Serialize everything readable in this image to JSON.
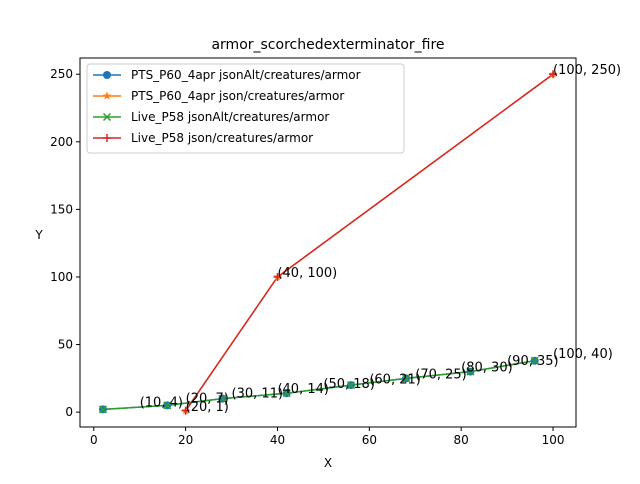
{
  "chart_data": {
    "type": "line",
    "title": "armor_scorchedexterminator_fire",
    "xlabel": "X",
    "ylabel": "Y",
    "xlim": [
      -3,
      105
    ],
    "ylim": [
      -11,
      262
    ],
    "grid": false,
    "legend_placement": "top-left",
    "x_ticks": [
      0,
      20,
      40,
      60,
      80,
      100
    ],
    "y_ticks": [
      0,
      50,
      100,
      150,
      200,
      250
    ],
    "series": [
      {
        "name": "PTS_P60_4apr jsonAlt/creatures/armor",
        "color": "#1f77b4",
        "marker": "circle",
        "x": [
          2,
          16,
          28,
          42,
          56,
          68,
          82,
          96
        ],
        "y": [
          2,
          5,
          10,
          14,
          20,
          25,
          30,
          38
        ]
      },
      {
        "name": "PTS_P60_4apr json/creatures/armor",
        "color": "#ff7f0e",
        "marker": "star",
        "x": [
          20,
          40,
          100
        ],
        "y": [
          1,
          100,
          250
        ]
      },
      {
        "name": "Live_P58 jsonAlt/creatures/armor",
        "color": "#2ca02c",
        "marker": "x",
        "x": [
          2,
          16,
          28,
          42,
          56,
          68,
          82,
          96
        ],
        "y": [
          2,
          5,
          10,
          14,
          20,
          25,
          30,
          38
        ]
      },
      {
        "name": "Live_P58 json/creatures/armor",
        "color": "#d62728",
        "marker": "plus",
        "x": [
          20,
          40,
          100
        ],
        "y": [
          1,
          100,
          250
        ]
      }
    ],
    "annotations": [
      {
        "text": "(10, 4)",
        "x": 10,
        "y": 4
      },
      {
        "text": "(20, 7)",
        "x": 20,
        "y": 7
      },
      {
        "text": "(20, 1)",
        "x": 20,
        "y": 1
      },
      {
        "text": "(30, 11)",
        "x": 30,
        "y": 11
      },
      {
        "text": "(40, 14)",
        "x": 40,
        "y": 14
      },
      {
        "text": "(40, 100)",
        "x": 40,
        "y": 100
      },
      {
        "text": "(50, 18)",
        "x": 50,
        "y": 18
      },
      {
        "text": "(60, 21)",
        "x": 60,
        "y": 21
      },
      {
        "text": "(70, 25)",
        "x": 70,
        "y": 25
      },
      {
        "text": "(80, 30)",
        "x": 80,
        "y": 30
      },
      {
        "text": "(90, 35)",
        "x": 90,
        "y": 35
      },
      {
        "text": "(100, 40)",
        "x": 100,
        "y": 40
      },
      {
        "text": "(100, 250)",
        "x": 100,
        "y": 250
      }
    ]
  }
}
